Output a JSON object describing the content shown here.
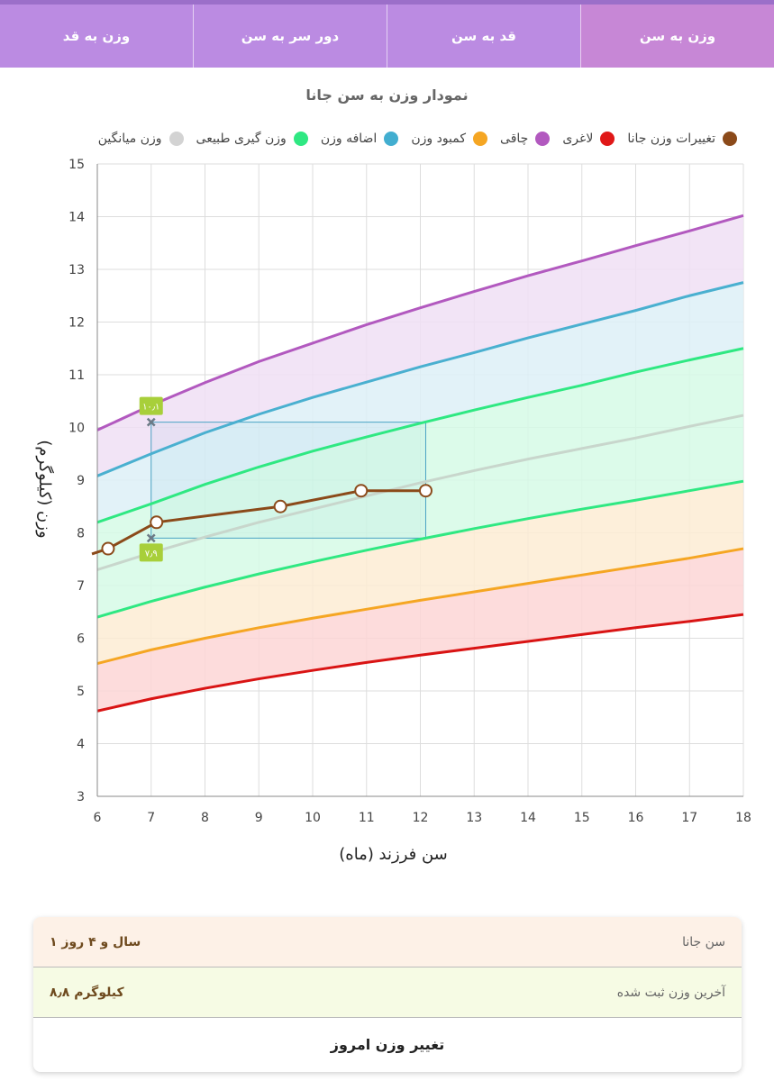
{
  "tabs": [
    {
      "label": "وزن به سن",
      "active": true
    },
    {
      "label": "قد به سن",
      "active": false
    },
    {
      "label": "دور سر به سن",
      "active": false
    },
    {
      "label": "وزن به قد",
      "active": false
    }
  ],
  "chart_title": "نمودار وزن به سن جانا",
  "legend": [
    {
      "label": "تغییرات وزن جانا",
      "color": "#8b4a1a"
    },
    {
      "label": "لاغری",
      "color": "#e01818"
    },
    {
      "label": "چاقی",
      "color": "#b259bf"
    },
    {
      "label": "کمبود وزن",
      "color": "#f5a623"
    },
    {
      "label": "اضافه وزن",
      "color": "#42aed0"
    },
    {
      "label": "وزن گیری طبیعی",
      "color": "#2fe882"
    },
    {
      "label": "وزن میانگین",
      "color": "#d3d3d3"
    }
  ],
  "chart_data": {
    "type": "line",
    "xlabel": "سن فرزند (ماه)",
    "ylabel": "وزن (کیلوگرم)",
    "xlim": [
      6,
      18
    ],
    "ylim": [
      3,
      15
    ],
    "xticks": [
      "6",
      "7",
      "8",
      "9",
      "10",
      "11",
      "12",
      "13",
      "14",
      "15",
      "16",
      "17",
      "18"
    ],
    "yticks": [
      "3",
      "4",
      "5",
      "6",
      "7",
      "8",
      "9",
      "10",
      "11",
      "12",
      "13",
      "14",
      "15"
    ],
    "grid": true,
    "curves_x": [
      6,
      7,
      8,
      9,
      10,
      11,
      12,
      13,
      14,
      15,
      16,
      17,
      18
    ],
    "reference_curves": [
      {
        "name": "لاغری",
        "color": "#d91414",
        "values": [
          4.62,
          4.85,
          5.05,
          5.23,
          5.39,
          5.54,
          5.68,
          5.81,
          5.94,
          6.07,
          6.2,
          6.32,
          6.45
        ]
      },
      {
        "name": "کمبود وزن",
        "color": "#f5a623",
        "values": [
          5.52,
          5.78,
          6.0,
          6.2,
          6.38,
          6.55,
          6.72,
          6.88,
          7.04,
          7.2,
          7.36,
          7.52,
          7.7
        ]
      },
      {
        "name": "وزن گیری طبیعی",
        "color": "#2fe882",
        "values": [
          6.4,
          6.7,
          6.97,
          7.22,
          7.45,
          7.67,
          7.88,
          8.08,
          8.27,
          8.45,
          8.62,
          8.8,
          8.98
        ]
      },
      {
        "name": "وزن میانگین",
        "color": "#c8d6cc",
        "values": [
          7.3,
          7.62,
          7.92,
          8.2,
          8.45,
          8.7,
          8.95,
          9.18,
          9.4,
          9.6,
          9.8,
          10.02,
          10.23
        ]
      },
      {
        "name": "وزن گیری طبیعی",
        "color": "#2fe882",
        "values": [
          8.2,
          8.55,
          8.92,
          9.25,
          9.55,
          9.82,
          10.08,
          10.33,
          10.57,
          10.8,
          11.05,
          11.28,
          11.5
        ]
      },
      {
        "name": "اضافه وزن",
        "color": "#4ab0d0",
        "values": [
          9.08,
          9.5,
          9.9,
          10.25,
          10.57,
          10.86,
          11.15,
          11.42,
          11.7,
          11.96,
          12.22,
          12.5,
          12.75
        ]
      },
      {
        "name": "چاقی",
        "color": "#b259bf",
        "values": [
          9.95,
          10.42,
          10.85,
          11.25,
          11.6,
          11.95,
          12.27,
          12.58,
          12.88,
          13.16,
          13.45,
          13.73,
          14.02
        ]
      }
    ],
    "band_colors": [
      "#fdd6d6",
      "#fdecd3",
      "#d6fae6",
      "#d6fae6",
      "#ddf0f7",
      "#f0dff4"
    ],
    "series": [
      {
        "name": "تغییرات وزن جانا",
        "color": "#8b4a1a",
        "x": [
          5.9,
          6.2,
          7.1,
          9.4,
          10.9,
          12.1
        ],
        "y": [
          7.6,
          7.7,
          8.2,
          8.5,
          8.8,
          8.8
        ]
      }
    ],
    "range_box": {
      "x": [
        7,
        12.1
      ],
      "y": [
        7.9,
        10.1
      ],
      "color": "#4aa3c4"
    },
    "markers": [
      {
        "x": 7,
        "y": 10.1,
        "label": "۱۰٫۱"
      },
      {
        "x": 7,
        "y": 7.9,
        "label": "۷٫۹"
      }
    ]
  },
  "info": {
    "age_label": "سن جانا",
    "age_value": "۱ سال و ۴ روز",
    "weight_label": "آخرین وزن ثبت شده",
    "weight_value": "۸٫۸ کیلوگرم",
    "action_label": "تغییر وزن امروز"
  }
}
